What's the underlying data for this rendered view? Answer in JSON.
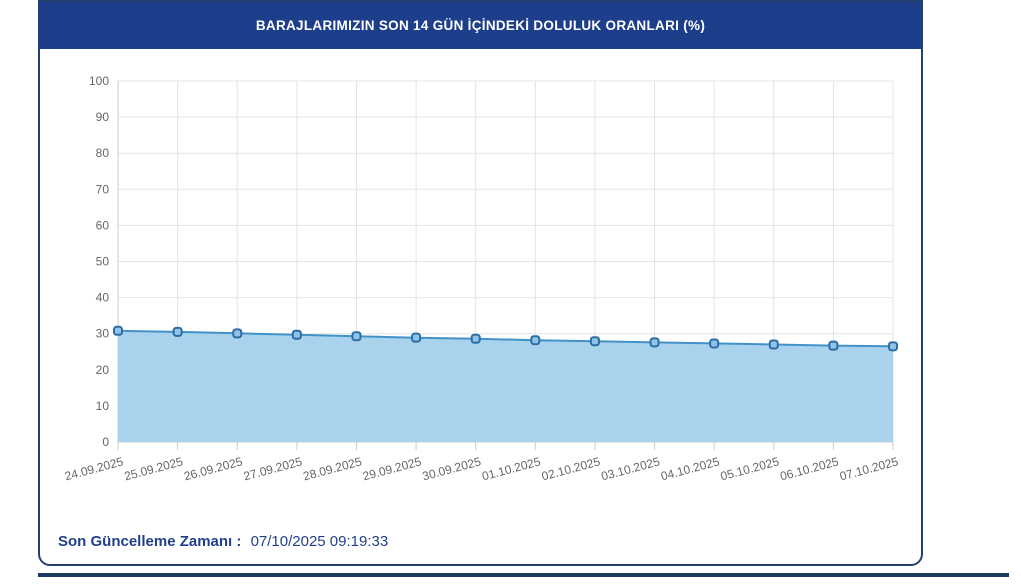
{
  "header": {
    "title": "BARAJLARIMIZIN SON 14 GÜN İÇİNDEKİ DOLULUK ORANLARI (%)"
  },
  "footer": {
    "update_label": "Son Güncelleme Zamanı :",
    "update_value": "07/10/2025 09:19:33"
  },
  "colors": {
    "header_bg": "#1d3e8a",
    "header_text": "#ffffff",
    "card_border": "#24406e",
    "grid": "#e4e4e4",
    "axis_line": "#cccccc",
    "axis_text": "#666666",
    "area_fill": "#a9d3ec",
    "series_line": "#4292c8",
    "marker_fill": "#8fc3e8",
    "marker_border": "#2e6da4",
    "footer_text": "#233f8c",
    "bottom_bar": "#1b3a5f"
  },
  "chart_data": {
    "type": "area",
    "title": "BARAJLARIMIZIN SON 14 GÜN İÇİNDEKİ DOLULUK ORANLARI (%)",
    "xlabel": "",
    "ylabel": "",
    "categories": [
      "24.09.2025",
      "25.09.2025",
      "26.09.2025",
      "27.09.2025",
      "28.09.2025",
      "29.09.2025",
      "30.09.2025",
      "01.10.2025",
      "02.10.2025",
      "03.10.2025",
      "04.10.2025",
      "05.10.2025",
      "06.10.2025",
      "07.10.2025"
    ],
    "values": [
      30.8,
      30.5,
      30.1,
      29.7,
      29.3,
      28.9,
      28.6,
      28.2,
      27.9,
      27.6,
      27.3,
      27.0,
      26.7,
      26.5
    ],
    "ylim": [
      0,
      100
    ],
    "ytick_step": 10,
    "grid": true,
    "legend": false,
    "marker_shape": "rounded-square",
    "x_label_rotation": -15
  }
}
